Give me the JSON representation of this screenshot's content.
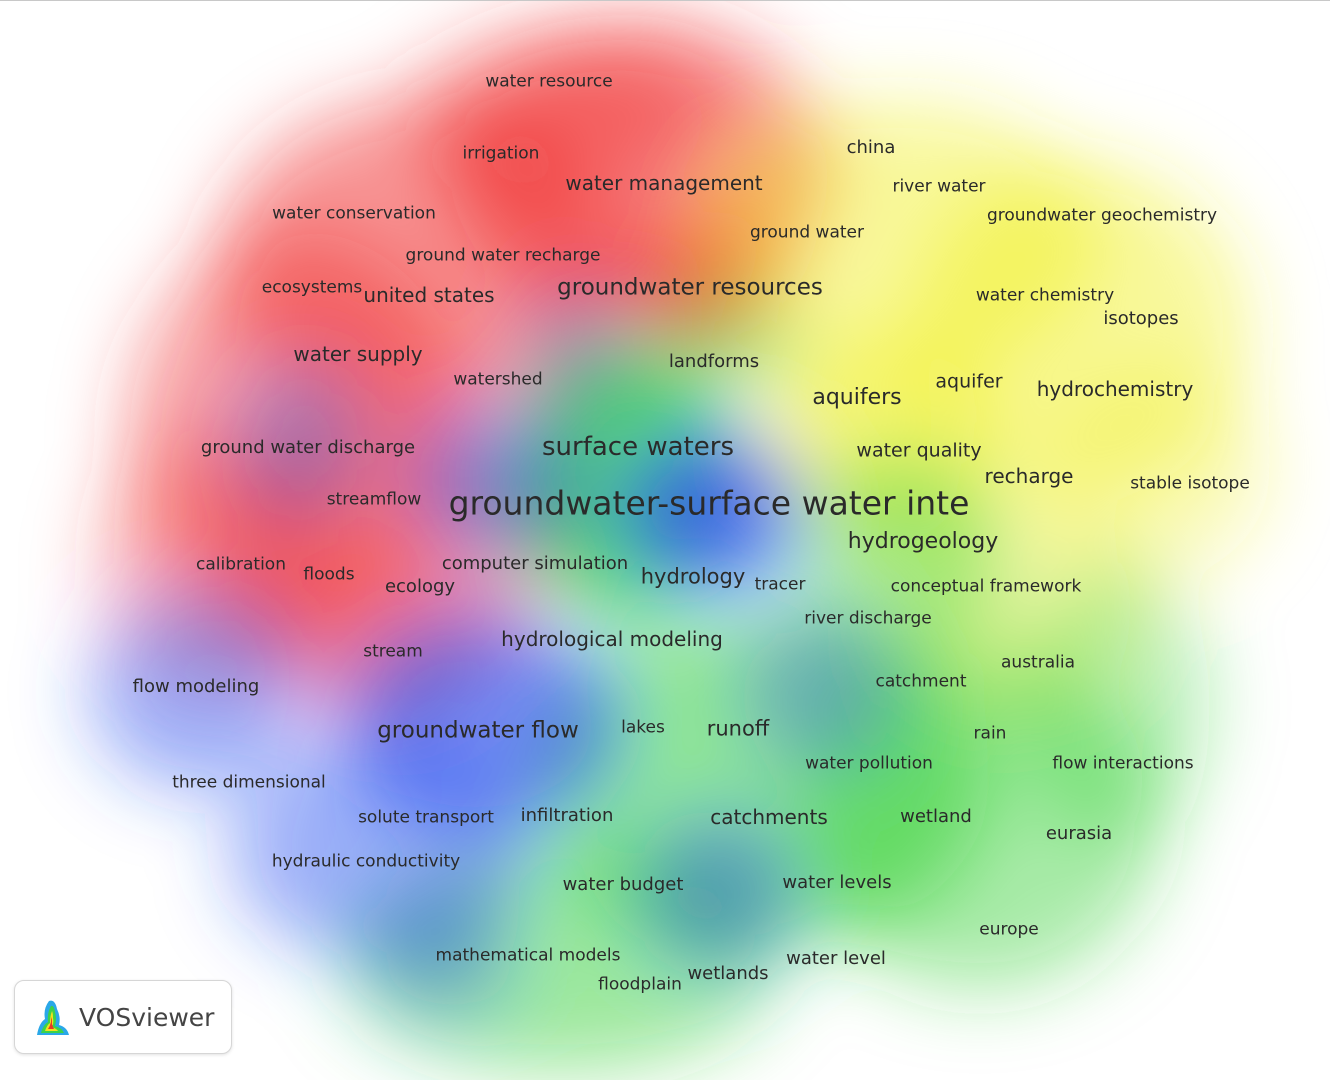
{
  "app": {
    "logo_text": "VOSviewer"
  },
  "colors": {
    "red": "#f02a2a",
    "green": "#22cc22",
    "blue": "#2850f0",
    "yellow": "#f0f020",
    "label": "#2a2a2a"
  },
  "terms": [
    {
      "id": "water-resource",
      "label": "water resource",
      "cluster": "red"
    },
    {
      "id": "irrigation",
      "label": "irrigation",
      "cluster": "red"
    },
    {
      "id": "water-management",
      "label": "water management",
      "cluster": "red"
    },
    {
      "id": "china",
      "label": "china",
      "cluster": "yellow"
    },
    {
      "id": "river-water",
      "label": "river water",
      "cluster": "yellow"
    },
    {
      "id": "water-conservation",
      "label": "water conservation",
      "cluster": "red"
    },
    {
      "id": "groundwater-geochemistry",
      "label": "groundwater geochemistry",
      "cluster": "yellow"
    },
    {
      "id": "ground-water",
      "label": "ground water",
      "cluster": "yellow"
    },
    {
      "id": "ground-water-recharge",
      "label": "ground water recharge",
      "cluster": "red"
    },
    {
      "id": "ecosystems",
      "label": "ecosystems",
      "cluster": "red"
    },
    {
      "id": "united-states",
      "label": "united states",
      "cluster": "red"
    },
    {
      "id": "groundwater-resources",
      "label": "groundwater resources",
      "cluster": "red"
    },
    {
      "id": "water-chemistry",
      "label": "water chemistry",
      "cluster": "yellow"
    },
    {
      "id": "isotopes",
      "label": "isotopes",
      "cluster": "yellow"
    },
    {
      "id": "water-supply",
      "label": "water supply",
      "cluster": "red"
    },
    {
      "id": "landforms",
      "label": "landforms",
      "cluster": "green"
    },
    {
      "id": "watershed",
      "label": "watershed",
      "cluster": "red"
    },
    {
      "id": "aquifer",
      "label": "aquifer",
      "cluster": "yellow"
    },
    {
      "id": "hydrochemistry",
      "label": "hydrochemistry",
      "cluster": "yellow"
    },
    {
      "id": "aquifers",
      "label": "aquifers",
      "cluster": "yellow"
    },
    {
      "id": "ground-water-discharge",
      "label": "ground water discharge",
      "cluster": "red"
    },
    {
      "id": "surface-waters",
      "label": "surface waters",
      "cluster": "green"
    },
    {
      "id": "water-quality",
      "label": "water quality",
      "cluster": "yellow"
    },
    {
      "id": "recharge",
      "label": "recharge",
      "cluster": "yellow"
    },
    {
      "id": "stable-isotope",
      "label": "stable isotope",
      "cluster": "yellow"
    },
    {
      "id": "streamflow",
      "label": "streamflow",
      "cluster": "red"
    },
    {
      "id": "gw-sw-interaction",
      "label": "groundwater-surface water inte",
      "cluster": "blue"
    },
    {
      "id": "hydrogeology",
      "label": "hydrogeology",
      "cluster": "green"
    },
    {
      "id": "calibration",
      "label": "calibration",
      "cluster": "red"
    },
    {
      "id": "floods",
      "label": "floods",
      "cluster": "red"
    },
    {
      "id": "ecology",
      "label": "ecology",
      "cluster": "red"
    },
    {
      "id": "computer-simulation",
      "label": "computer simulation",
      "cluster": "blue"
    },
    {
      "id": "hydrology",
      "label": "hydrology",
      "cluster": "green"
    },
    {
      "id": "tracer",
      "label": "tracer",
      "cluster": "green"
    },
    {
      "id": "conceptual-framework",
      "label": "conceptual framework",
      "cluster": "yellow"
    },
    {
      "id": "river-discharge",
      "label": "river discharge",
      "cluster": "green"
    },
    {
      "id": "stream",
      "label": "stream",
      "cluster": "red"
    },
    {
      "id": "hydrological-modeling",
      "label": "hydrological modeling",
      "cluster": "blue"
    },
    {
      "id": "australia",
      "label": "australia",
      "cluster": "yellow"
    },
    {
      "id": "flow-modeling",
      "label": "flow modeling",
      "cluster": "blue"
    },
    {
      "id": "catchment",
      "label": "catchment",
      "cluster": "green"
    },
    {
      "id": "groundwater-flow",
      "label": "groundwater flow",
      "cluster": "blue"
    },
    {
      "id": "lakes",
      "label": "lakes",
      "cluster": "blue"
    },
    {
      "id": "runoff",
      "label": "runoff",
      "cluster": "green"
    },
    {
      "id": "rain",
      "label": "rain",
      "cluster": "green"
    },
    {
      "id": "water-pollution",
      "label": "water pollution",
      "cluster": "green"
    },
    {
      "id": "flow-interactions",
      "label": "flow interactions",
      "cluster": "green"
    },
    {
      "id": "three-dimensional",
      "label": "three dimensional",
      "cluster": "blue"
    },
    {
      "id": "solute-transport",
      "label": "solute transport",
      "cluster": "blue"
    },
    {
      "id": "infiltration",
      "label": "infiltration",
      "cluster": "blue"
    },
    {
      "id": "catchments",
      "label": "catchments",
      "cluster": "green"
    },
    {
      "id": "wetland",
      "label": "wetland",
      "cluster": "green"
    },
    {
      "id": "eurasia",
      "label": "eurasia",
      "cluster": "green"
    },
    {
      "id": "hydraulic-conductivity",
      "label": "hydraulic conductivity",
      "cluster": "blue"
    },
    {
      "id": "water-budget",
      "label": "water budget",
      "cluster": "green"
    },
    {
      "id": "water-levels",
      "label": "water levels",
      "cluster": "green"
    },
    {
      "id": "europe",
      "label": "europe",
      "cluster": "green"
    },
    {
      "id": "mathematical-models",
      "label": "mathematical models",
      "cluster": "blue"
    },
    {
      "id": "water-level",
      "label": "water level",
      "cluster": "green"
    },
    {
      "id": "wetlands",
      "label": "wetlands",
      "cluster": "green"
    },
    {
      "id": "floodplain",
      "label": "floodplain",
      "cluster": "green"
    }
  ]
}
